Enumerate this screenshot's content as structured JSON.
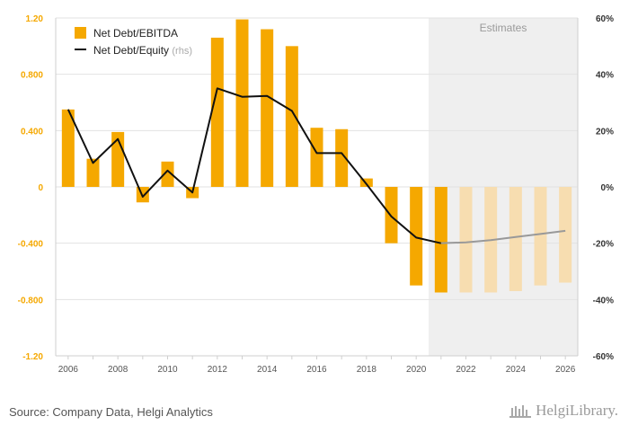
{
  "chart_data": {
    "type": "bar",
    "categories": [
      "2006",
      "2007",
      "2008",
      "2009",
      "2010",
      "2011",
      "2012",
      "2013",
      "2014",
      "2015",
      "2016",
      "2017",
      "2018",
      "2019",
      "2020",
      "2021",
      "2022",
      "2023",
      "2024",
      "2025",
      "2026"
    ],
    "series": [
      {
        "name": "Net Debt/EBITDA",
        "type": "bar",
        "axis": "left",
        "color": "#f5a800",
        "estimate_color": "#f7ddb0",
        "values": [
          0.55,
          0.2,
          0.39,
          -0.11,
          0.18,
          -0.08,
          1.06,
          1.19,
          1.12,
          1.0,
          0.42,
          0.41,
          0.06,
          -0.4,
          -0.7,
          -0.75,
          -0.75,
          -0.75,
          -0.74,
          -0.7,
          -0.68
        ]
      },
      {
        "name": "Net Debt/Equity",
        "legend_suffix": "(rhs)",
        "type": "line",
        "axis": "right",
        "unit": "%",
        "color": "#111111",
        "estimate_color": "#999999",
        "values": [
          27.5,
          8.5,
          17.0,
          -3.5,
          5.8,
          -2.0,
          35.0,
          32.0,
          32.3,
          27.0,
          12.0,
          12.0,
          1.0,
          -10.5,
          -18.0,
          -20.0,
          -19.7,
          -18.9,
          -17.8,
          -16.7,
          -15.6
        ]
      }
    ],
    "estimates_from": "2021",
    "estimates_label": "Estimates",
    "ylim": [
      -1.2,
      1.2
    ],
    "ylim_right": [
      -60,
      60
    ],
    "yticks": [
      "1.20",
      "0.800",
      "0.400",
      "0",
      "-0.400",
      "-0.800",
      "-1.20"
    ],
    "yticks_right": [
      "60%",
      "40%",
      "20%",
      "0%",
      "-20%",
      "-40%",
      "-60%"
    ],
    "xticks": [
      "2006",
      "2008",
      "2010",
      "2012",
      "2014",
      "2016",
      "2018",
      "2020",
      "2022",
      "2024",
      "2026"
    ],
    "title": "",
    "xlabel": "",
    "ylabel": "",
    "legend": "top-left"
  },
  "footer": {
    "source": "Source: Company Data, Helgi Analytics",
    "brand": "HelgiLibrary."
  }
}
